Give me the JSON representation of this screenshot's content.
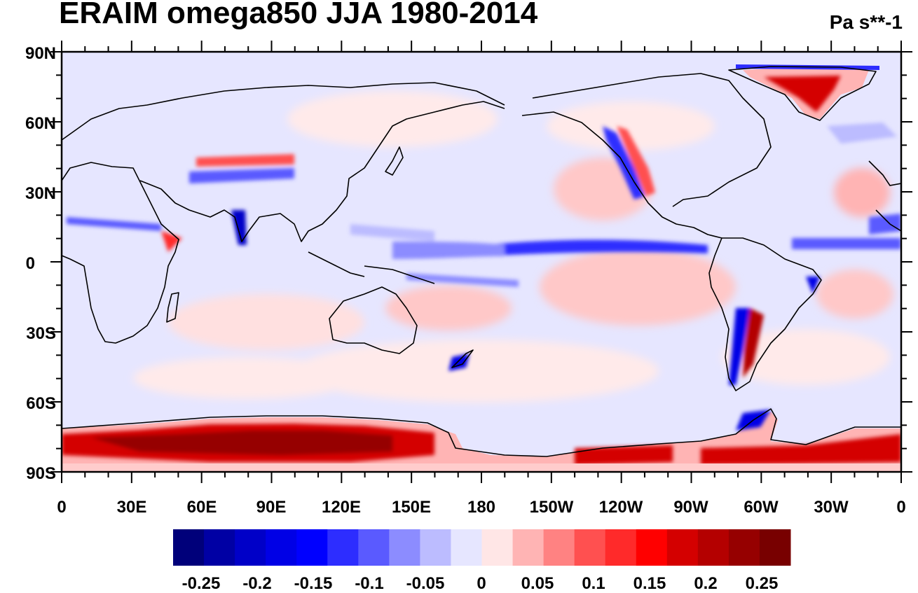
{
  "title": "ERAIM omega850 JJA 1980-2014",
  "units": "Pa s**-1",
  "map": {
    "projection": "cylindrical-equidistant",
    "lon_range": [
      0,
      360
    ],
    "lat_range": [
      -90,
      90
    ],
    "lat_tick_labels": [
      "90N",
      "60N",
      "30N",
      "0",
      "30S",
      "60S",
      "90S"
    ],
    "lon_tick_labels": [
      "0",
      "30E",
      "60E",
      "90E",
      "120E",
      "150E",
      "180",
      "150W",
      "120W",
      "90W",
      "60W",
      "30W",
      "0"
    ],
    "features": {
      "itcz_band": "strong ascent (negative omega, blue) along ~5-10N across Pacific and Atlantic",
      "antarctica": "strong descent (positive omega, red) over Antarctic ice sheet",
      "greenland": "descent (red) over Greenland ice sheet",
      "subtropical_highs": "weak descent (pink) over subtropical oceans"
    }
  },
  "colorbar": {
    "colors": [
      "#00007a",
      "#0000a4",
      "#0000c8",
      "#0000e6",
      "#0000ff",
      "#2d2dff",
      "#5a5aff",
      "#8c8cff",
      "#bcbcff",
      "#e6e6ff",
      "#ffe6e6",
      "#ffb4b4",
      "#ff8282",
      "#ff5050",
      "#ff2a2a",
      "#ff0000",
      "#d40000",
      "#b40000",
      "#960000",
      "#780000"
    ],
    "tick_labels": [
      "-0.25",
      "-0.2",
      "-0.15",
      "-0.1",
      "-0.05",
      "0",
      "0.05",
      "0.1",
      "0.15",
      "0.2",
      "0.25"
    ],
    "tick_values": [
      -0.25,
      -0.2,
      -0.15,
      -0.1,
      -0.05,
      0,
      0.05,
      0.1,
      0.15,
      0.2,
      0.25
    ]
  }
}
